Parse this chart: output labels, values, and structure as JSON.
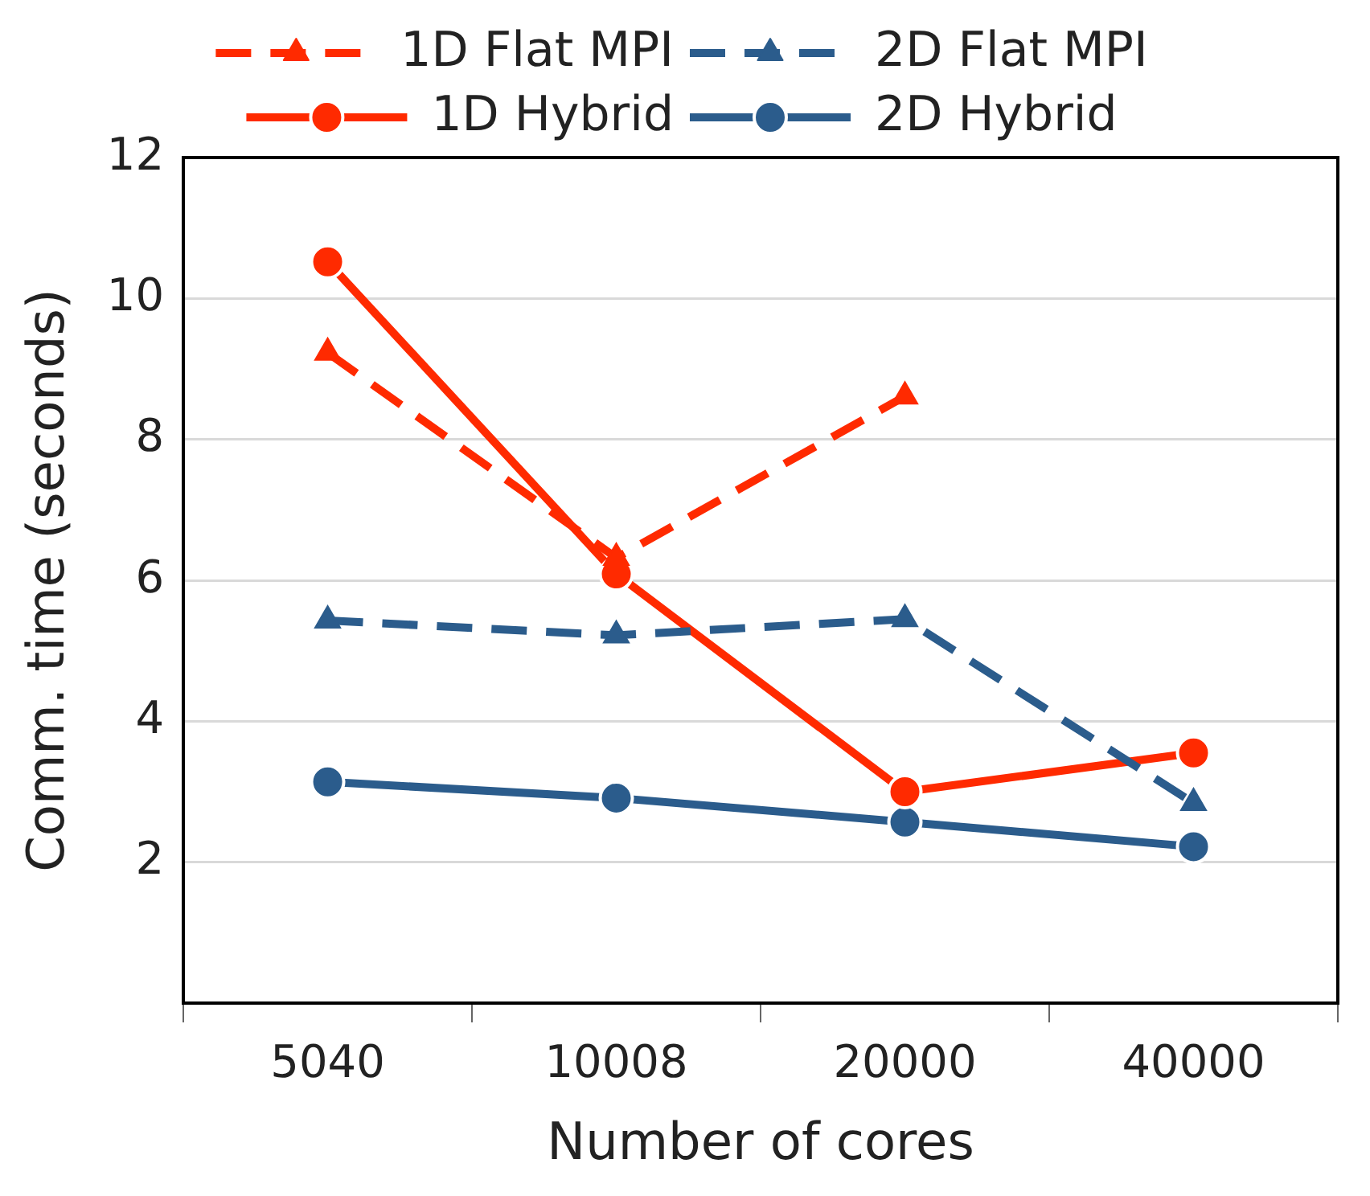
{
  "chart_data": {
    "type": "line",
    "xlabel": "Number of cores",
    "ylabel": "Comm. time (seconds)",
    "categories": [
      "5040",
      "10008",
      "20000",
      "40000"
    ],
    "ylim": [
      0,
      12
    ],
    "yticks": [
      {
        "value": 0,
        "label": null
      },
      2,
      4,
      6,
      8,
      10,
      12
    ],
    "grid": "y",
    "legend": "top",
    "series": [
      {
        "name": "1D Flat MPI",
        "color": "#ff2a00",
        "values": [
          9.23,
          6.32,
          8.61,
          null
        ],
        "marker": "triangle",
        "line_style": "dashed"
      },
      {
        "name": "2D Flat MPI",
        "color": "#2b5c8c",
        "values": [
          5.43,
          5.22,
          5.45,
          2.84
        ],
        "marker": "triangle",
        "line_style": "dashed"
      },
      {
        "name": "1D Hybrid",
        "color": "#ff2a00",
        "values": [
          10.52,
          6.09,
          3.0,
          3.55
        ],
        "marker": "circle",
        "line_style": "solid"
      },
      {
        "name": "2D Hybrid",
        "color": "#2b5c8c",
        "values": [
          3.14,
          2.91,
          2.57,
          2.22
        ],
        "marker": "circle",
        "line_style": "solid"
      }
    ]
  }
}
